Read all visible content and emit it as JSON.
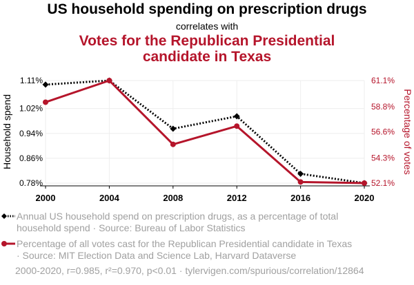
{
  "title": "US household spending on prescription drugs",
  "correlates": "correlates with",
  "title2_line1": "Votes for the Republican Presidential",
  "title2_line2": "candidate in Texas",
  "colors": {
    "series1": "#000000",
    "series2": "#b5152b",
    "grid": "#eeeeee",
    "muted": "#a0a0a0"
  },
  "chart_data": {
    "type": "line",
    "x": [
      2000,
      2004,
      2008,
      2012,
      2016,
      2020
    ],
    "y_left": {
      "label": "Household spend",
      "ticks": [
        "1.11%",
        "1.02%",
        "0.94%",
        "0.86%",
        "0.78%"
      ],
      "tick_values": [
        1.11,
        1.02,
        0.94,
        0.86,
        0.78
      ],
      "range": [
        0.78,
        1.11
      ]
    },
    "y_right": {
      "label": "Percentage of votes",
      "ticks": [
        "61.1%",
        "58.8%",
        "56.6%",
        "54.3%",
        "52.1%"
      ],
      "tick_values": [
        61.1,
        58.8,
        56.6,
        54.3,
        52.1
      ],
      "range": [
        52.1,
        61.1
      ]
    },
    "series": [
      {
        "axis": "left",
        "style": "dotted",
        "marker": "diamond",
        "values": [
          1.097,
          1.11,
          0.955,
          0.995,
          0.81,
          0.78
        ]
      },
      {
        "axis": "right",
        "style": "solid",
        "marker": "circle",
        "values": [
          59.2,
          61.1,
          55.5,
          57.1,
          52.2,
          52.1
        ]
      }
    ],
    "grid": true
  },
  "legend": {
    "series1_line1": "Annual US household spend on prescription drugs, as a percentage of total",
    "series1_line2": "household spend · Source: Bureau of Labor Statistics",
    "series2_line1": "Percentage of all votes cast for the Republican Presidential candidate in Texas",
    "series2_line2": "· Source: MIT Election Data and Science Lab, Harvard Dataverse"
  },
  "footer": "2000-2020, r=0.985, r²=0.970, p<0.01 · tylervigen.com/spurious/correlation/12864"
}
